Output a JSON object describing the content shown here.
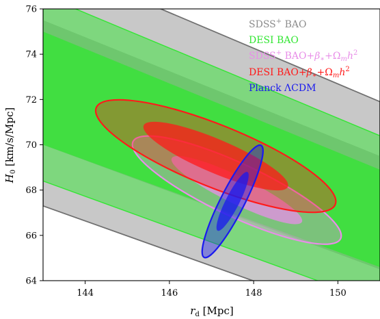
{
  "chart_data": {
    "type": "contour",
    "xlabel": "r_d [Mpc]",
    "ylabel": "H_0 [km/s/Mpc]",
    "xlim": [
      143,
      151
    ],
    "ylim": [
      64,
      76
    ],
    "x_ticks": [
      144,
      146,
      148,
      150
    ],
    "y_ticks": [
      64,
      66,
      68,
      70,
      72,
      74,
      76
    ],
    "grid": false,
    "legend_position": "top-right",
    "legend": [
      {
        "label": "SDSS⁺ BAO",
        "color": "#8c8c8c"
      },
      {
        "label": "DESI BAO",
        "color": "#33e633"
      },
      {
        "label": "SDSS⁺ BAO+β∗+Ωₘh²",
        "color": "#e88ee8"
      },
      {
        "label": "DESI BAO+β∗+Ωₘh²",
        "color": "#ff1a1a"
      },
      {
        "label": "Planck ΛCDM",
        "color": "#1a1aee"
      }
    ],
    "series": [
      {
        "name": "SDSS⁺ BAO",
        "kind": "band",
        "color": "#c8c8c8",
        "edge_color": "#707070",
        "outer": {
          "upper": [
            [
              143,
              78.2
            ],
            [
              151,
              71.9
            ]
          ],
          "lower": [
            [
              143,
              67.3
            ],
            [
              151,
              62.0
            ]
          ]
        },
        "inner": {
          "upper": [
            [
              143,
              75.5
            ],
            [
              151,
              69.5
            ]
          ],
          "lower": [
            [
              143,
              70.0
            ],
            [
              151,
              64.5
            ]
          ]
        }
      },
      {
        "name": "DESI BAO",
        "kind": "band",
        "color": "#33e633",
        "outer": {
          "upper": [
            [
              143,
              76.6
            ],
            [
              151,
              70.4
            ]
          ],
          "lower": [
            [
              143,
              68.4
            ],
            [
              151,
              63.0
            ]
          ]
        },
        "inner": {
          "upper": [
            [
              143,
              75.0
            ],
            [
              151,
              68.9
            ]
          ],
          "lower": [
            [
              143,
              70.0
            ],
            [
              151,
              64.6
            ]
          ]
        }
      },
      {
        "name": "SDSS⁺ BAO+β∗+Ωₘh²",
        "kind": "ellipse",
        "color": "#e88ee8",
        "center": [
          147.6,
          68.0
        ],
        "levels": [
          {
            "rx_data": 2.72,
            "ry_data": 1.17,
            "angle_deg": 25
          },
          {
            "rx_data": 1.72,
            "ry_data": 0.6,
            "angle_deg": 26
          }
        ]
      },
      {
        "name": "DESI BAO+β∗+Ωₘh²",
        "kind": "ellipse",
        "color": "#ff1a1a",
        "center": [
          147.1,
          69.5
        ],
        "levels": [
          {
            "rx_data": 3.06,
            "ry_data": 1.37,
            "angle_deg": 22
          },
          {
            "rx_data": 1.86,
            "ry_data": 0.74,
            "angle_deg": 23
          }
        ]
      },
      {
        "name": "Planck ΛCDM",
        "kind": "ellipse",
        "color": "#1a1aee",
        "center": [
          147.5,
          67.5
        ],
        "levels": [
          {
            "rx_data": 1.49,
            "ry_data": 0.53,
            "angle_deg": -63
          },
          {
            "rx_data": 0.78,
            "ry_data": 0.3,
            "angle_deg": -63
          }
        ]
      }
    ]
  }
}
